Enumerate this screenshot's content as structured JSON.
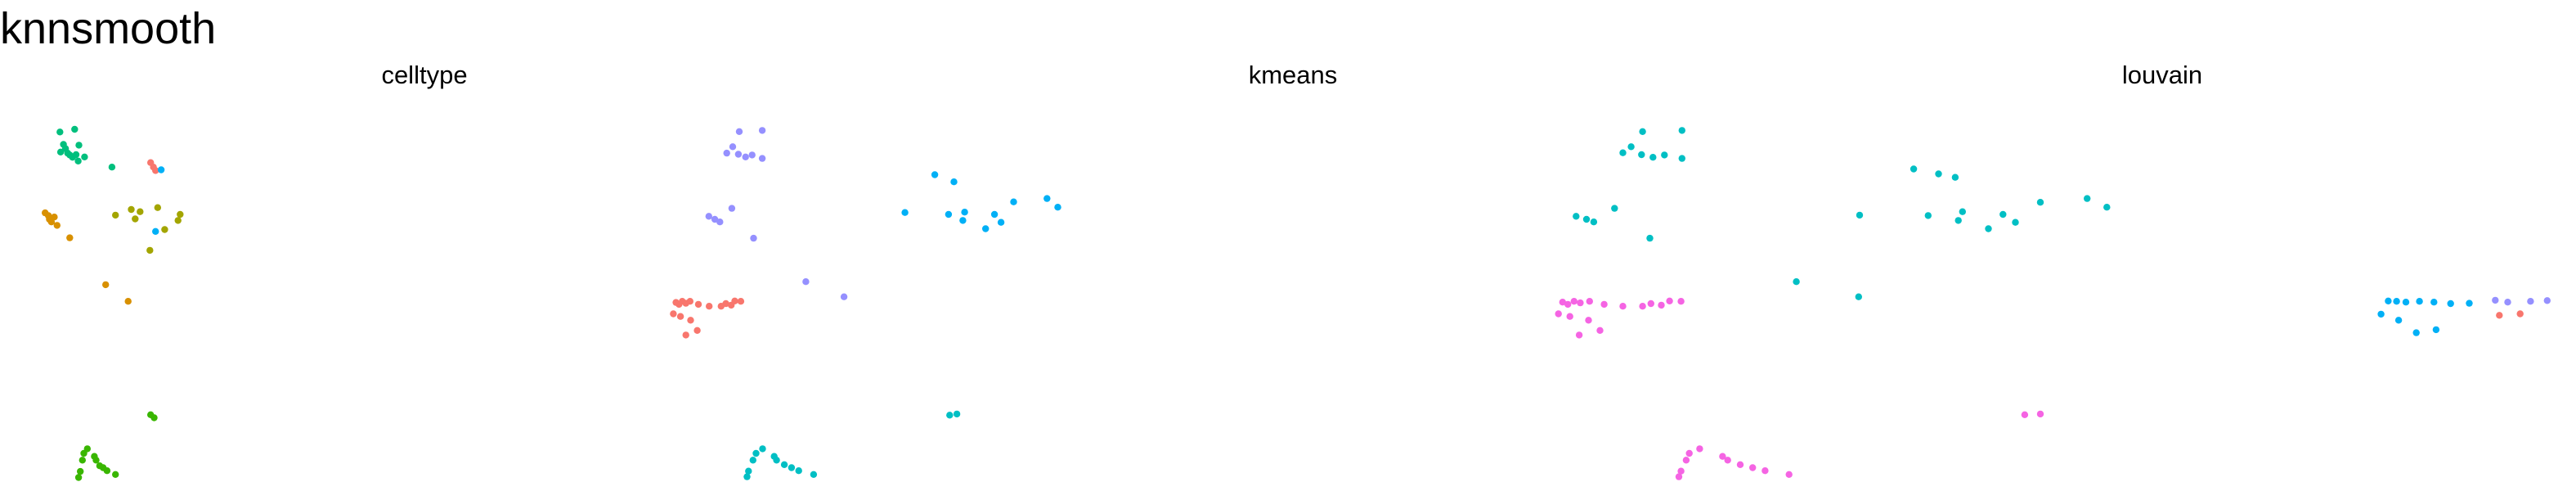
{
  "title": "knnsmooth",
  "chart_data": [
    {
      "type": "scatter",
      "title": "celltype",
      "axes_visible": false,
      "x_range": [
        0,
        1
      ],
      "y_range": [
        0,
        1
      ],
      "groups": [
        {
          "color": "#00BF7D",
          "points": [
            [
              0.084,
              0.875
            ],
            [
              0.092,
              0.895
            ],
            [
              0.098,
              0.884
            ],
            [
              0.104,
              0.872
            ],
            [
              0.11,
              0.867
            ],
            [
              0.118,
              0.861
            ],
            [
              0.128,
              0.868
            ],
            [
              0.134,
              0.851
            ],
            [
              0.152,
              0.862
            ],
            [
              0.136,
              0.893
            ],
            [
              0.082,
              0.928
            ],
            [
              0.124,
              0.935
            ],
            [
              0.23,
              0.835
            ]
          ]
        },
        {
          "color": "#D89000",
          "points": [
            [
              0.04,
              0.714
            ],
            [
              0.049,
              0.707
            ],
            [
              0.052,
              0.697
            ],
            [
              0.058,
              0.69
            ],
            [
              0.066,
              0.703
            ],
            [
              0.074,
              0.681
            ],
            [
              0.11,
              0.648
            ],
            [
              0.212,
              0.524
            ],
            [
              0.276,
              0.48
            ]
          ]
        },
        {
          "color": "#F8766D",
          "points": [
            [
              0.34,
              0.847
            ],
            [
              0.348,
              0.835
            ],
            [
              0.354,
              0.826
            ]
          ]
        },
        {
          "color": "#A3A500",
          "points": [
            [
              0.24,
              0.708
            ],
            [
              0.285,
              0.723
            ],
            [
              0.296,
              0.698
            ],
            [
              0.31,
              0.717
            ],
            [
              0.338,
              0.615
            ],
            [
              0.36,
              0.728
            ],
            [
              0.38,
              0.67
            ],
            [
              0.418,
              0.694
            ],
            [
              0.424,
              0.71
            ]
          ]
        },
        {
          "color": "#00B0F6",
          "points": [
            [
              0.37,
              0.828
            ],
            [
              0.354,
              0.665
            ]
          ]
        },
        {
          "color": "#39B600",
          "points": [
            [
              0.34,
              0.18
            ],
            [
              0.35,
              0.172
            ],
            [
              0.15,
              0.078
            ],
            [
              0.16,
              0.09
            ],
            [
              0.146,
              0.06
            ],
            [
              0.18,
              0.07
            ],
            [
              0.185,
              0.06
            ],
            [
              0.195,
              0.045
            ],
            [
              0.205,
              0.04
            ],
            [
              0.216,
              0.032
            ],
            [
              0.24,
              0.022
            ],
            [
              0.135,
              0.014
            ],
            [
              0.14,
              0.03
            ]
          ]
        }
      ]
    },
    {
      "type": "scatter",
      "title": "kmeans",
      "axes_visible": false,
      "x_range": [
        0,
        1
      ],
      "y_range": [
        0,
        1
      ],
      "groups": [
        {
          "color": "#9590FF",
          "points": [
            [
              0.1215,
              0.872
            ],
            [
              0.1315,
              0.889
            ],
            [
              0.141,
              0.869
            ],
            [
              0.153,
              0.862
            ],
            [
              0.164,
              0.867
            ],
            [
              0.181,
              0.858
            ],
            [
              0.1425,
              0.929
            ],
            [
              0.181,
              0.932
            ],
            [
              0.0915,
              0.705
            ],
            [
              0.1015,
              0.697
            ],
            [
              0.11,
              0.69
            ],
            [
              0.13,
              0.726
            ],
            [
              0.1665,
              0.647
            ],
            [
              0.254,
              0.532
            ],
            [
              0.318,
              0.492
            ]
          ]
        },
        {
          "color": "#F8766D",
          "points": [
            [
              0.0365,
              0.477
            ],
            [
              0.0415,
              0.472
            ],
            [
              0.047,
              0.48
            ],
            [
              0.053,
              0.475
            ],
            [
              0.06,
              0.48
            ],
            [
              0.074,
              0.472
            ],
            [
              0.092,
              0.467
            ],
            [
              0.112,
              0.467
            ],
            [
              0.12,
              0.474
            ],
            [
              0.129,
              0.47
            ],
            [
              0.135,
              0.481
            ],
            [
              0.145,
              0.48
            ],
            [
              0.032,
              0.447
            ],
            [
              0.044,
              0.44
            ],
            [
              0.061,
              0.43
            ],
            [
              0.053,
              0.391
            ],
            [
              0.072,
              0.403
            ]
          ]
        },
        {
          "color": "#00B0F6",
          "points": [
            [
              0.47,
              0.815
            ],
            [
              0.502,
              0.796
            ],
            [
              0.42,
              0.715
            ],
            [
              0.493,
              0.71
            ],
            [
              0.52,
              0.716
            ],
            [
              0.517,
              0.694
            ],
            [
              0.555,
              0.672
            ],
            [
              0.57,
              0.71
            ],
            [
              0.581,
              0.689
            ],
            [
              0.602,
              0.743
            ],
            [
              0.658,
              0.752
            ],
            [
              0.676,
              0.729
            ]
          ]
        },
        {
          "color": "#00BFC4",
          "points": [
            [
              0.495,
              0.179
            ],
            [
              0.507,
              0.182
            ],
            [
              0.1705,
              0.078
            ],
            [
              0.1815,
              0.09
            ],
            [
              0.1655,
              0.06
            ],
            [
              0.201,
              0.07
            ],
            [
              0.205,
              0.06
            ],
            [
              0.218,
              0.048
            ],
            [
              0.23,
              0.04
            ],
            [
              0.242,
              0.032
            ],
            [
              0.267,
              0.022
            ],
            [
              0.1555,
              0.016
            ],
            [
              0.158,
              0.031
            ]
          ]
        }
      ]
    },
    {
      "type": "scatter",
      "title": "louvain",
      "axes_visible": false,
      "x_range": [
        0,
        1
      ],
      "y_range": [
        0,
        1
      ],
      "groups": [
        {
          "color": "#00BFC4",
          "points": [
            [
              0.098,
              0.873
            ],
            [
              0.106,
              0.889
            ],
            [
              0.116,
              0.868
            ],
            [
              0.127,
              0.861
            ],
            [
              0.138,
              0.867
            ],
            [
              0.155,
              0.858
            ],
            [
              0.117,
              0.929
            ],
            [
              0.155,
              0.932
            ],
            [
              0.053,
              0.705
            ],
            [
              0.063,
              0.697
            ],
            [
              0.07,
              0.69
            ],
            [
              0.09,
              0.726
            ],
            [
              0.124,
              0.647
            ],
            [
              0.378,
              0.83
            ],
            [
              0.402,
              0.817
            ],
            [
              0.418,
              0.808
            ],
            [
              0.326,
              0.708
            ],
            [
              0.392,
              0.707
            ],
            [
              0.425,
              0.717
            ],
            [
              0.421,
              0.694
            ],
            [
              0.45,
              0.672
            ],
            [
              0.464,
              0.71
            ],
            [
              0.476,
              0.689
            ],
            [
              0.5,
              0.742
            ],
            [
              0.545,
              0.752
            ],
            [
              0.564,
              0.729
            ],
            [
              0.265,
              0.532
            ],
            [
              0.325,
              0.492
            ]
          ]
        },
        {
          "color": "#F564E3",
          "points": [
            [
              0.04,
              0.478
            ],
            [
              0.045,
              0.472
            ],
            [
              0.051,
              0.48
            ],
            [
              0.057,
              0.476
            ],
            [
              0.066,
              0.48
            ],
            [
              0.08,
              0.472
            ],
            [
              0.098,
              0.467
            ],
            [
              0.117,
              0.467
            ],
            [
              0.125,
              0.474
            ],
            [
              0.135,
              0.47
            ],
            [
              0.143,
              0.481
            ],
            [
              0.154,
              0.48
            ],
            [
              0.036,
              0.447
            ],
            [
              0.047,
              0.44
            ],
            [
              0.065,
              0.43
            ],
            [
              0.056,
              0.391
            ],
            [
              0.076,
              0.403
            ],
            [
              0.485,
              0.18
            ],
            [
              0.5,
              0.182
            ],
            [
              0.162,
              0.078
            ],
            [
              0.172,
              0.09
            ],
            [
              0.159,
              0.06
            ],
            [
              0.194,
              0.07
            ],
            [
              0.199,
              0.06
            ],
            [
              0.211,
              0.048
            ],
            [
              0.223,
              0.04
            ],
            [
              0.235,
              0.032
            ],
            [
              0.258,
              0.022
            ],
            [
              0.152,
              0.016
            ],
            [
              0.154,
              0.031
            ]
          ]
        },
        {
          "color": "#00B0F6",
          "points": [
            [
              0.835,
              0.481
            ],
            [
              0.843,
              0.48
            ],
            [
              0.852,
              0.478
            ],
            [
              0.865,
              0.48
            ],
            [
              0.879,
              0.478
            ],
            [
              0.895,
              0.474
            ],
            [
              0.913,
              0.475
            ],
            [
              0.828,
              0.446
            ],
            [
              0.845,
              0.43
            ],
            [
              0.862,
              0.397
            ],
            [
              0.881,
              0.405
            ]
          ]
        },
        {
          "color": "#9590FF",
          "points": [
            [
              0.938,
              0.483
            ],
            [
              0.95,
              0.478
            ],
            [
              0.972,
              0.48
            ],
            [
              0.988,
              0.482
            ]
          ]
        },
        {
          "color": "#F8766D",
          "points": [
            [
              0.942,
              0.443
            ],
            [
              0.962,
              0.447
            ]
          ]
        }
      ]
    }
  ]
}
